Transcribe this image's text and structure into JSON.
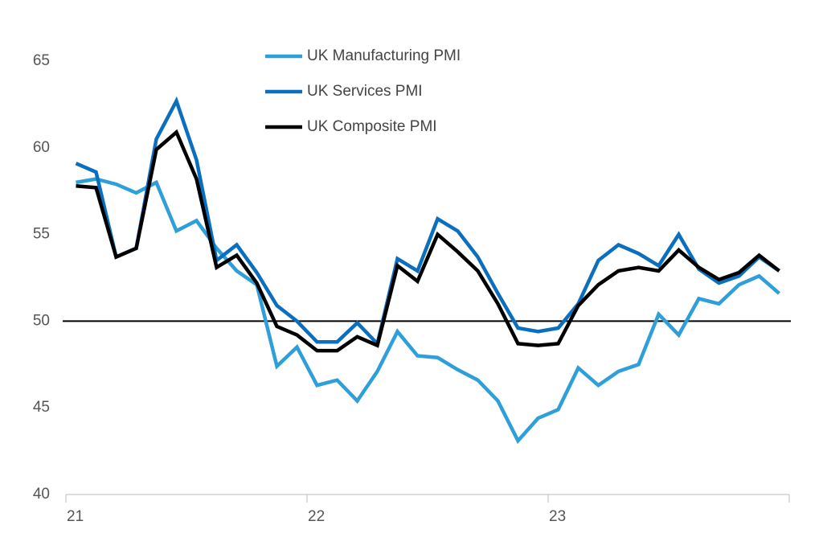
{
  "chart_data": {
    "type": "line",
    "categories": [
      "21",
      null,
      null,
      null,
      null,
      null,
      null,
      null,
      null,
      null,
      null,
      null,
      "22",
      null,
      null,
      null,
      null,
      null,
      null,
      null,
      null,
      null,
      null,
      null,
      "23",
      null,
      null,
      null,
      null,
      null,
      null,
      null,
      null,
      null,
      null,
      null
    ],
    "series": [
      {
        "name": "UK Manufacturing PMI",
        "color": "#2e9fd9",
        "values": [
          58.0,
          58.2,
          57.9,
          57.4,
          58.0,
          55.2,
          55.8,
          54.2,
          52.9,
          52.1,
          47.4,
          48.5,
          46.3,
          46.6,
          45.4,
          47.1,
          49.4,
          48.0,
          47.9,
          47.2,
          46.6,
          45.4,
          43.1,
          44.4,
          44.9,
          47.3,
          46.3,
          47.1,
          47.5,
          50.4,
          49.2,
          51.3,
          51.0,
          52.1,
          52.6,
          51.6
        ]
      },
      {
        "name": "UK Services PMI",
        "color": "#0a6fbf",
        "values": [
          59.1,
          58.6,
          53.7,
          54.2,
          60.5,
          62.7,
          59.3,
          53.5,
          54.4,
          52.8,
          50.9,
          50.0,
          48.8,
          48.8,
          49.9,
          48.7,
          53.6,
          52.9,
          55.9,
          55.2,
          53.7,
          51.6,
          49.6,
          49.4,
          49.6,
          51.0,
          53.5,
          54.4,
          53.9,
          53.2,
          55.0,
          53.0,
          52.2,
          52.6,
          53.7,
          52.9
        ]
      },
      {
        "name": "UK Composite PMI",
        "color": "#000000",
        "values": [
          57.8,
          57.7,
          53.7,
          54.2,
          59.9,
          60.9,
          58.2,
          53.1,
          53.8,
          52.2,
          49.7,
          49.2,
          48.3,
          48.3,
          49.1,
          48.6,
          53.2,
          52.3,
          55.0,
          54.0,
          52.9,
          51.0,
          48.7,
          48.6,
          48.7,
          50.9,
          52.1,
          52.9,
          53.1,
          52.9,
          54.1,
          53.1,
          52.4,
          52.8,
          53.8,
          52.9
        ]
      }
    ],
    "ylim": [
      40,
      65
    ],
    "yticks": [
      40,
      45,
      50,
      55,
      60,
      65
    ],
    "reference_line": 50,
    "grid": false
  }
}
